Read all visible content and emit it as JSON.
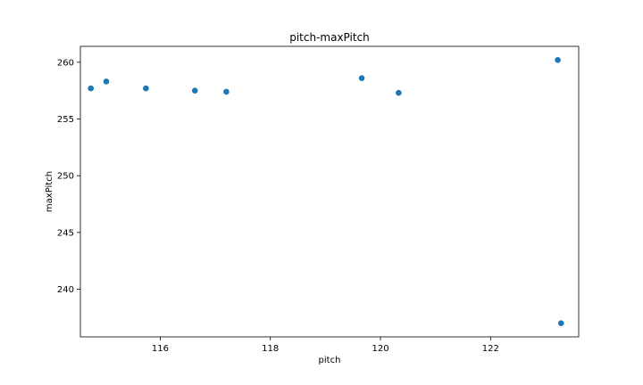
{
  "chart_data": {
    "type": "scatter",
    "title": "pitch-maxPitch",
    "xlabel": "pitch",
    "ylabel": "maxPitch",
    "xlim": [
      114.55,
      123.6
    ],
    "ylim": [
      235.8,
      261.4
    ],
    "xticks": [
      116,
      118,
      120,
      122
    ],
    "yticks": [
      240,
      245,
      250,
      255,
      260
    ],
    "grid": false,
    "series": [
      {
        "marker_color": "#1f77b4",
        "points": [
          {
            "x": 114.74,
            "y": 257.7
          },
          {
            "x": 115.02,
            "y": 258.3
          },
          {
            "x": 115.74,
            "y": 257.7
          },
          {
            "x": 116.63,
            "y": 257.5
          },
          {
            "x": 117.2,
            "y": 257.4
          },
          {
            "x": 119.66,
            "y": 258.6
          },
          {
            "x": 120.33,
            "y": 257.3
          },
          {
            "x": 123.22,
            "y": 260.2
          },
          {
            "x": 123.28,
            "y": 237.0
          }
        ]
      }
    ]
  }
}
